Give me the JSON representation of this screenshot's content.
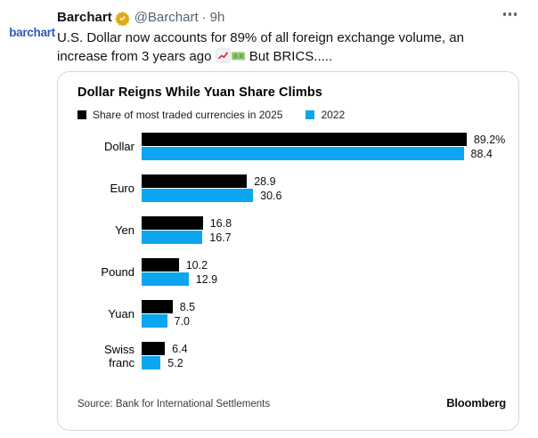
{
  "tweet": {
    "avatar_text": "barchart",
    "avatar_color": "#2e5cb8",
    "author_name": "Barchart",
    "verified_badge": "gold-checkmark",
    "badge_color": "#e2a914",
    "handle": "@Barchart",
    "separator": "·",
    "timestamp": "9h",
    "more_icon": "⋯",
    "body": {
      "text_1": "U.S. Dollar now accounts for 89% of all foreign exchange volume, an increase from 3 years ago ",
      "emoji_1": "📈",
      "emoji_2": "💵",
      "text_2": " But BRICS....."
    }
  },
  "chart_data": {
    "type": "bar",
    "orientation": "horizontal",
    "title": "Dollar Reigns While Yuan Share Climbs",
    "legend": [
      {
        "label": "Share of most traded currencies in 2025",
        "color": "#000000"
      },
      {
        "label": "2022",
        "color": "#0ca6f0"
      }
    ],
    "categories": [
      "Dollar",
      "Euro",
      "Yen",
      "Pound",
      "Yuan",
      "Swiss franc"
    ],
    "series": [
      {
        "name": "Share of most traded currencies in 2025",
        "color": "#000000",
        "values": [
          89.2,
          28.9,
          16.8,
          10.2,
          8.5,
          6.4
        ],
        "labels": [
          "89.2%",
          "28.9",
          "16.8",
          "10.2",
          "8.5",
          "6.4"
        ]
      },
      {
        "name": "2022",
        "color": "#0ca6f0",
        "values": [
          88.4,
          30.6,
          16.7,
          12.9,
          7.0,
          5.2
        ],
        "labels": [
          "88.4",
          "30.6",
          "16.7",
          "12.9",
          "7.0",
          "5.2"
        ]
      }
    ],
    "xlim": [
      0,
      100
    ],
    "grid": false,
    "legend_position": "top-left",
    "source": "Source: Bank for International Settlements",
    "brand": "Bloomberg"
  }
}
